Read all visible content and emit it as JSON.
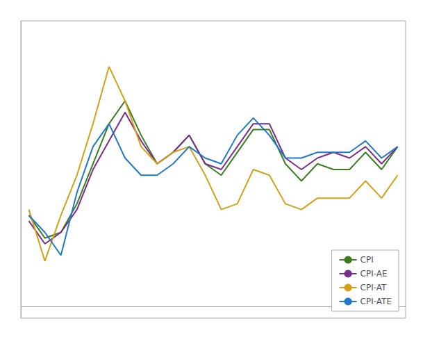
{
  "chart_data": {
    "type": "line",
    "categories": [
      null,
      null,
      null,
      null,
      null,
      null,
      null,
      null,
      null,
      null,
      null,
      null,
      null,
      null,
      null,
      null,
      null,
      null,
      null,
      null,
      null,
      null,
      null,
      null
    ],
    "series": [
      {
        "name": "CPI",
        "color": "#3a7d1e",
        "values": [
          1.6,
          1.2,
          1.3,
          1.8,
          2.5,
          3.2,
          3.6,
          3.0,
          2.5,
          2.7,
          3.0,
          2.5,
          2.3,
          2.7,
          3.1,
          3.1,
          2.5,
          2.2,
          2.5,
          2.4,
          2.4,
          2.7,
          2.4,
          2.8
        ]
      },
      {
        "name": "CPI-AE",
        "color": "#7b2d8b",
        "values": [
          1.5,
          1.1,
          1.3,
          1.7,
          2.4,
          2.9,
          3.4,
          2.9,
          2.5,
          2.7,
          3.0,
          2.5,
          2.4,
          2.8,
          3.2,
          3.2,
          2.6,
          2.4,
          2.6,
          2.7,
          2.6,
          2.8,
          2.5,
          2.8
        ]
      },
      {
        "name": "CPI-AT",
        "color": "#d4a017",
        "values": [
          1.7,
          0.8,
          1.6,
          2.3,
          3.2,
          4.2,
          3.6,
          2.8,
          2.5,
          2.7,
          2.8,
          2.3,
          1.7,
          1.8,
          2.4,
          2.3,
          1.8,
          1.7,
          1.9,
          1.9,
          1.9,
          2.2,
          1.9,
          2.3
        ]
      },
      {
        "name": "CPI-ATE",
        "color": "#1f78c8",
        "values": [
          1.6,
          1.3,
          0.9,
          2.0,
          2.8,
          3.2,
          2.6,
          2.3,
          2.3,
          2.5,
          2.8,
          2.6,
          2.5,
          3.0,
          3.3,
          3.0,
          2.6,
          2.6,
          2.7,
          2.7,
          2.7,
          2.9,
          2.6,
          2.8
        ]
      }
    ],
    "ylim": [
      -0.2,
      5.0
    ],
    "grid": false,
    "tick_labels": false,
    "legend": "lower right"
  }
}
